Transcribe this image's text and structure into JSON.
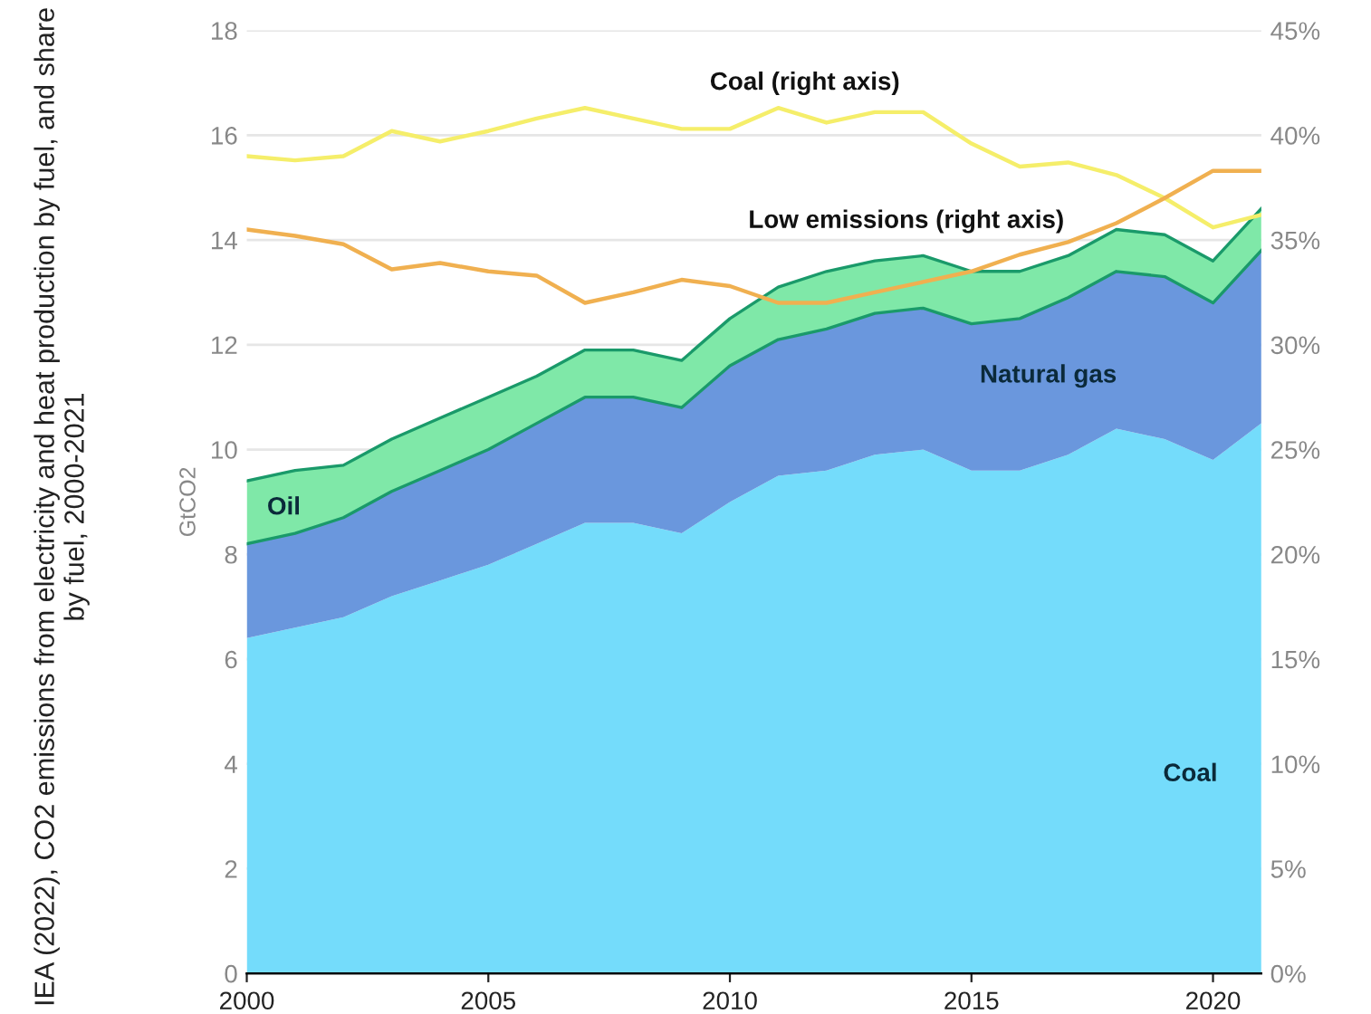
{
  "chart_data": {
    "type": "area",
    "stacked": true,
    "ylabel": "GtCO2",
    "annotations": [
      "IEA (2022), CO2 emissions from electricity and heat production by fuel, and share by fuel, 2000-2021"
    ],
    "x": [
      2000,
      2001,
      2002,
      2003,
      2004,
      2005,
      2006,
      2007,
      2008,
      2009,
      2010,
      2011,
      2012,
      2013,
      2014,
      2015,
      2016,
      2017,
      2018,
      2019,
      2020,
      2021
    ],
    "series": [
      {
        "name": "Coal",
        "color": "#74dcfb",
        "values": [
          6.4,
          6.6,
          6.8,
          7.2,
          7.5,
          7.8,
          8.2,
          8.6,
          8.6,
          8.4,
          9.0,
          9.5,
          9.6,
          9.9,
          10.0,
          9.6,
          9.6,
          9.9,
          10.4,
          10.2,
          9.8,
          10.5
        ]
      },
      {
        "name": "Natural gas",
        "color": "#6a97dd",
        "values": [
          1.8,
          1.8,
          1.9,
          2.0,
          2.1,
          2.2,
          2.3,
          2.4,
          2.4,
          2.4,
          2.6,
          2.6,
          2.7,
          2.7,
          2.7,
          2.8,
          2.9,
          3.0,
          3.0,
          3.1,
          3.0,
          3.3
        ]
      },
      {
        "name": "Oil",
        "color": "#7fe8a8",
        "values": [
          1.2,
          1.2,
          1.0,
          1.0,
          1.0,
          1.0,
          0.9,
          0.9,
          0.9,
          0.9,
          0.9,
          1.0,
          1.1,
          1.0,
          1.0,
          1.0,
          0.9,
          0.8,
          0.8,
          0.8,
          0.8,
          0.8
        ]
      },
      {
        "name": "Coal (right axis)",
        "type": "line",
        "axis": "y2",
        "color": "#f5ee6a",
        "values": [
          39.0,
          38.8,
          39.0,
          40.2,
          39.7,
          40.2,
          40.8,
          41.3,
          40.8,
          40.3,
          40.3,
          41.3,
          40.6,
          41.1,
          41.1,
          39.6,
          38.5,
          38.7,
          38.1,
          37.0,
          35.6,
          36.2
        ]
      },
      {
        "name": "Low emissions (right axis)",
        "type": "line",
        "axis": "y2",
        "color": "#f0b050",
        "values": [
          35.5,
          35.2,
          34.8,
          33.6,
          33.9,
          33.5,
          33.3,
          32.0,
          32.5,
          33.1,
          32.8,
          32.0,
          32.0,
          32.5,
          33.0,
          33.5,
          34.3,
          34.9,
          35.8,
          37.0,
          38.3,
          38.3
        ]
      }
    ],
    "xlim": [
      2000,
      2021
    ],
    "xticks": [
      2000,
      2005,
      2010,
      2015,
      2020
    ],
    "ylim": [
      0,
      18
    ],
    "yticks": [
      0,
      2,
      4,
      6,
      8,
      10,
      12,
      14,
      16,
      18
    ],
    "y2lim": [
      0,
      45
    ],
    "y2ticks": [
      {
        "value": 0,
        "label": "0%"
      },
      {
        "value": 5,
        "label": "5%"
      },
      {
        "value": 10,
        "label": "10%"
      },
      {
        "value": 15,
        "label": "15%"
      },
      {
        "value": 20,
        "label": "20%"
      },
      {
        "value": 25,
        "label": "25%"
      },
      {
        "value": 30,
        "label": "30%"
      },
      {
        "value": 35,
        "label": "35%"
      },
      {
        "value": 40,
        "label": "40%"
      },
      {
        "value": 45,
        "label": "45%"
      }
    ],
    "grid": "y",
    "legend": false
  }
}
